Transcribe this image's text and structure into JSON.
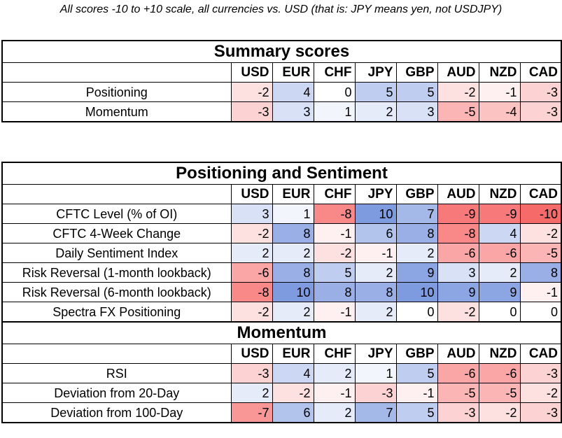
{
  "caption": "All scores -10 to +10 scale, all currencies vs. USD (that is: JPY means yen, not USDJPY)",
  "currencies": [
    "USD",
    "EUR",
    "CHF",
    "JPY",
    "GBP",
    "AUD",
    "NZD",
    "CAD"
  ],
  "colors": {
    "positive_max": "#7f9be0",
    "negative_max": "#f76a6a",
    "neutral": "#ffffff"
  },
  "summary": {
    "title": "Summary scores",
    "rows": [
      {
        "label": "Positioning",
        "values": [
          -2,
          4,
          0,
          5,
          5,
          -2,
          -1,
          -3
        ]
      },
      {
        "label": "Momentum",
        "values": [
          -3,
          3,
          1,
          2,
          3,
          -5,
          -4,
          -3
        ]
      }
    ]
  },
  "positioning": {
    "title": "Positioning and Sentiment",
    "rows": [
      {
        "label": "CFTC Level (% of OI)",
        "values": [
          3,
          1,
          -8,
          10,
          7,
          -9,
          -9,
          -10
        ]
      },
      {
        "label": "CFTC 4-Week Change",
        "values": [
          -2,
          8,
          -1,
          6,
          8,
          -8,
          4,
          -2
        ]
      },
      {
        "label": "Daily Sentiment Index",
        "values": [
          2,
          2,
          -2,
          -1,
          2,
          -6,
          -6,
          -5
        ]
      },
      {
        "label": "Risk Reversal (1-month lookback)",
        "values": [
          -6,
          8,
          5,
          2,
          9,
          3,
          2,
          8
        ]
      },
      {
        "label": "Risk Reversal (6-month lookback)",
        "values": [
          -8,
          10,
          8,
          8,
          10,
          9,
          9,
          -1
        ]
      },
      {
        "label": "Spectra FX Positioning",
        "values": [
          -2,
          2,
          -1,
          2,
          0,
          -2,
          0,
          0
        ]
      }
    ]
  },
  "momentum": {
    "title": "Momentum",
    "rows": [
      {
        "label": "RSI",
        "values": [
          -3,
          4,
          2,
          1,
          5,
          -6,
          -6,
          -3
        ]
      },
      {
        "label": "Deviation from 20-Day",
        "values": [
          2,
          -2,
          -1,
          -3,
          -1,
          -5,
          -5,
          -2
        ]
      },
      {
        "label": "Deviation from 100-Day",
        "values": [
          -7,
          6,
          2,
          7,
          5,
          -3,
          -2,
          -3
        ]
      }
    ]
  }
}
